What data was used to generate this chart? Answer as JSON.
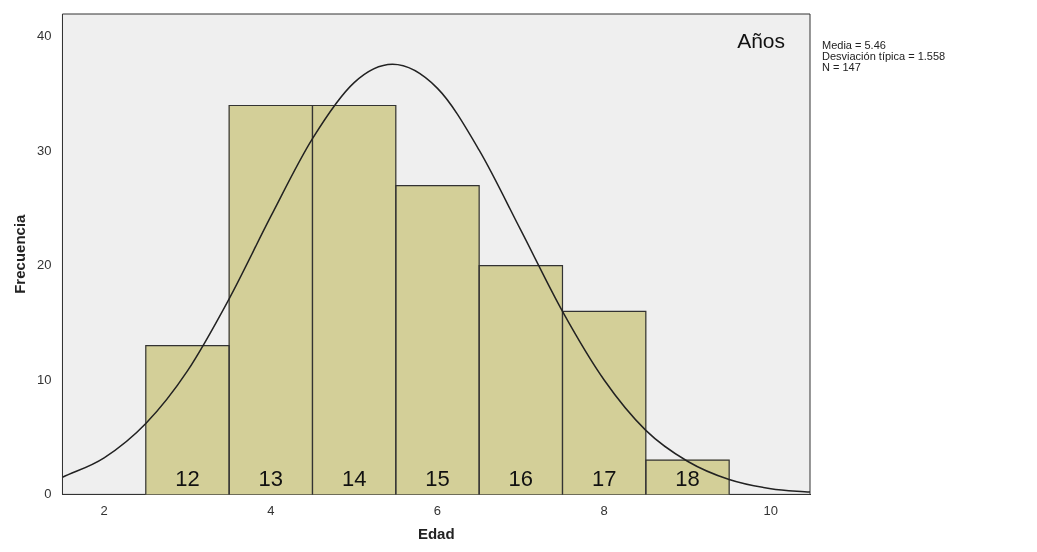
{
  "chart_data": {
    "type": "histogram",
    "xlabel": "Edad",
    "ylabel": "Frecuencia",
    "bins": [
      2.5,
      3.5,
      4.5,
      5.5,
      6.5,
      7.5,
      8.5,
      9.5
    ],
    "values": [
      13,
      34,
      34,
      27,
      20,
      16,
      3
    ],
    "color": "#d3cf98",
    "series": [
      {
        "type": "line",
        "color": "#222222",
        "x": [
          1.5,
          2,
          2.5,
          3,
          3.5,
          4,
          4.5,
          5,
          5.46,
          6,
          6.5,
          7,
          7.5,
          8,
          8.5,
          9,
          9.5,
          10,
          10.47
        ],
        "values": [
          1.5,
          3.2,
          6.2,
          10.8,
          17.1,
          24.3,
          31.1,
          36.0,
          37.6,
          35.5,
          30.1,
          23.1,
          16.0,
          10.0,
          5.6,
          2.9,
          1.3,
          0.5,
          0.2
        ]
      }
    ],
    "xlim": [
      1.5,
      10.47
    ],
    "xticks": [
      2,
      4,
      6,
      8,
      10
    ],
    "ylim": [
      0,
      42
    ],
    "yticks": [
      0,
      10,
      20,
      30,
      40
    ],
    "grid": false,
    "legend": false,
    "marker": "none",
    "annotations": [
      "Años",
      "Media = 5.46",
      "Desviación típica = 1.558",
      "N = 147",
      "12",
      "13",
      "14",
      "15",
      "16",
      "17",
      "18"
    ]
  }
}
